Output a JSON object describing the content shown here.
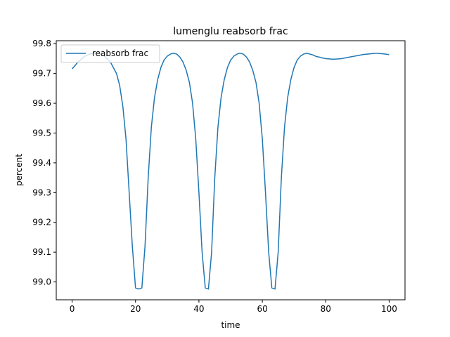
{
  "chart_data": {
    "type": "line",
    "title": "lumenglu reabsorb frac",
    "xlabel": "time",
    "ylabel": "percent",
    "xlim": [
      -5,
      105
    ],
    "ylim": [
      98.94,
      99.81
    ],
    "xticks": [
      0,
      20,
      40,
      60,
      80,
      100
    ],
    "yticks": [
      99.0,
      99.1,
      99.2,
      99.3,
      99.4,
      99.5,
      99.6,
      99.7,
      99.8
    ],
    "xtick_labels": [
      "0",
      "20",
      "40",
      "60",
      "80",
      "100"
    ],
    "ytick_labels": [
      "99.0",
      "99.1",
      "99.2",
      "99.3",
      "99.4",
      "99.5",
      "99.6",
      "99.7",
      "99.8"
    ],
    "legend": {
      "position": "top-left",
      "entries": [
        "reabsorb frac"
      ]
    },
    "grid": false,
    "series": [
      {
        "name": "reabsorb frac",
        "color": "#1f77b4",
        "x": [
          0,
          2,
          4,
          6,
          8,
          10,
          12,
          14,
          15,
          16,
          17,
          18,
          19,
          20,
          21,
          22,
          23,
          24,
          25,
          26,
          27,
          28,
          29,
          30,
          31,
          32,
          33,
          34,
          35,
          36,
          37,
          38,
          39,
          40,
          41,
          42,
          43,
          44,
          45,
          46,
          47,
          48,
          49,
          50,
          51,
          52,
          53,
          54,
          55,
          56,
          57,
          58,
          59,
          60,
          61,
          62,
          63,
          64,
          65,
          66,
          67,
          68,
          69,
          70,
          71,
          72,
          73,
          74,
          75,
          76,
          77,
          78,
          79,
          80,
          81,
          82,
          83,
          84,
          85,
          86,
          87,
          88,
          89,
          90,
          91,
          92,
          93,
          94,
          95,
          96,
          97,
          98,
          99,
          100
        ],
        "y": [
          99.715,
          99.74,
          99.758,
          99.767,
          99.768,
          99.76,
          99.74,
          99.7,
          99.66,
          99.59,
          99.48,
          99.3,
          99.12,
          98.98,
          98.976,
          98.98,
          99.12,
          99.35,
          99.52,
          99.62,
          99.68,
          99.72,
          99.745,
          99.758,
          99.765,
          99.768,
          99.765,
          99.755,
          99.738,
          99.71,
          99.67,
          99.6,
          99.48,
          99.3,
          99.1,
          98.98,
          98.976,
          99.1,
          99.35,
          99.52,
          99.62,
          99.68,
          99.72,
          99.745,
          99.758,
          99.765,
          99.768,
          99.765,
          99.755,
          99.738,
          99.71,
          99.67,
          99.6,
          99.48,
          99.3,
          99.1,
          98.98,
          98.976,
          99.1,
          99.35,
          99.52,
          99.62,
          99.68,
          99.72,
          99.745,
          99.758,
          99.765,
          99.768,
          99.765,
          99.762,
          99.757,
          99.755,
          99.752,
          99.75,
          99.749,
          99.748,
          99.748,
          99.749,
          99.75,
          99.752,
          99.754,
          99.756,
          99.758,
          99.76,
          99.762,
          99.764,
          99.765,
          99.766,
          99.767,
          99.768,
          99.767,
          99.766,
          99.765,
          99.763
        ]
      }
    ]
  }
}
